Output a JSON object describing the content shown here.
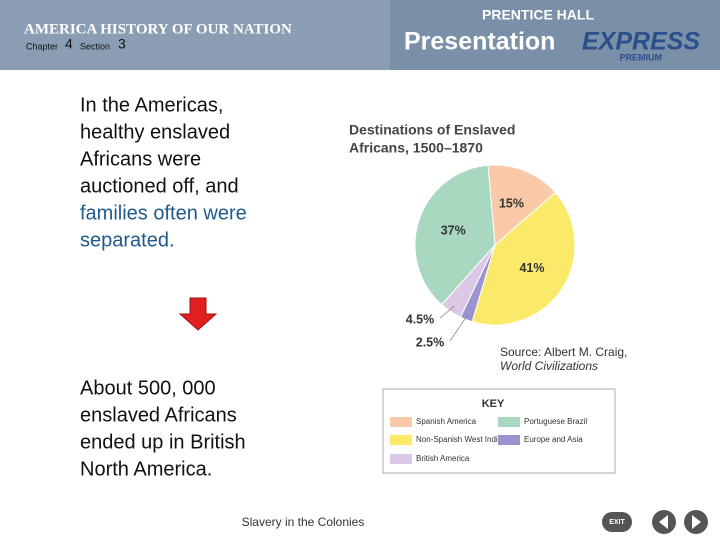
{
  "header": {
    "series_title": "AMERICA HISTORY OF OUR NATION",
    "chapter_label": "Chapter",
    "chapter": "4",
    "section_label": "Section",
    "section": "3",
    "publisher": "PRENTICE HALL",
    "product": "Presentation",
    "product_accent": "EXPRESS",
    "edition": "PREMIUM"
  },
  "body": {
    "paragraph_1": {
      "black_lines": [
        "In the Americas,",
        "healthy enslaved",
        "Africans were",
        "auctioned off, and"
      ],
      "blue_lines": [
        "families often were",
        "separated."
      ]
    },
    "paragraph_2": [
      "About 500, 000",
      "enslaved Africans",
      "ended up in British",
      "North America."
    ]
  },
  "chart_data": {
    "type": "pie",
    "title": [
      "Destinations of Enslaved",
      "Africans, 1500–1870"
    ],
    "categories": [
      "Spanish America",
      "Non-Spanish West Indies",
      "Europe and Asia",
      "British America",
      "Portuguese Brazil"
    ],
    "values": [
      15,
      41,
      2.5,
      4.5,
      37
    ],
    "value_labels": [
      "15%",
      "41%",
      "2.5%",
      "4.5%",
      "37%"
    ],
    "colors": [
      "#f9c9a8",
      "#fbe96a",
      "#9b93cf",
      "#dcc8e6",
      "#a8d8bf"
    ],
    "legend_title": "KEY",
    "source": [
      "Source: Albert M. Craig,",
      "World Civilizations"
    ]
  },
  "footer": {
    "caption": "Slavery in the Colonies",
    "exit": "EXIT"
  }
}
